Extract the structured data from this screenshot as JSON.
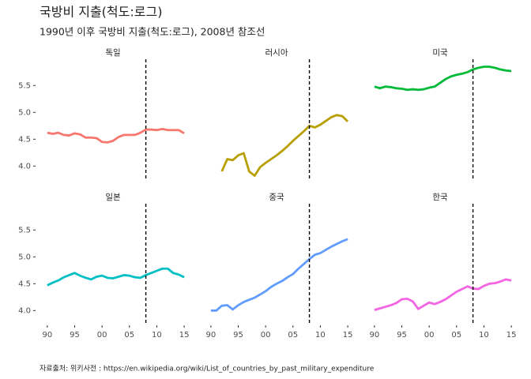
{
  "chart_data": {
    "type": "line",
    "facet": true,
    "title": "국방비 지출(척도:로그)",
    "subtitle": "1990년 이후 국방비 지출(척도:로그), 2008년 참조선",
    "caption": "자료출처: 위키사전 : https://en.wikipedia.org/wiki/List_of_countries_by_past_military_expenditure",
    "x": [
      1990,
      1991,
      1992,
      1993,
      1994,
      1995,
      1996,
      1997,
      1998,
      1999,
      2000,
      2001,
      2002,
      2003,
      2004,
      2005,
      2006,
      2007,
      2008,
      2009,
      2010,
      2011,
      2012,
      2013,
      2014,
      2015
    ],
    "xlim": [
      1988,
      2016
    ],
    "xticks": [
      {
        "value": 1990,
        "label": "90"
      },
      {
        "value": 1995,
        "label": "95"
      },
      {
        "value": 2000,
        "label": "00"
      },
      {
        "value": 2005,
        "label": "05"
      },
      {
        "value": 2010,
        "label": "10"
      },
      {
        "value": 2015,
        "label": "15"
      }
    ],
    "ylim": [
      3.74,
      5.99
    ],
    "yticks": [
      {
        "value": 4,
        "label": "4.0"
      },
      4.5,
      {
        "value": 5,
        "label": "5.0"
      },
      5.5
    ],
    "vline": 2008,
    "series": [
      {
        "name": "독일",
        "color": "#F8766D",
        "values": [
          4.62,
          4.6,
          4.62,
          4.58,
          4.57,
          4.61,
          4.59,
          4.53,
          4.53,
          4.52,
          4.45,
          4.44,
          4.47,
          4.54,
          4.58,
          4.58,
          4.58,
          4.62,
          4.68,
          4.68,
          4.67,
          4.69,
          4.67,
          4.67,
          4.67,
          4.61
        ]
      },
      {
        "name": "러시아",
        "color": "#B79F00",
        "values": [
          null,
          null,
          3.9,
          4.13,
          4.11,
          4.2,
          4.24,
          3.9,
          3.82,
          3.98,
          4.06,
          4.13,
          4.2,
          4.28,
          4.37,
          4.47,
          4.56,
          4.65,
          4.75,
          4.72,
          4.77,
          4.84,
          4.91,
          4.95,
          4.93,
          4.83
        ]
      },
      {
        "name": "미국",
        "color": "#00BA38",
        "values": [
          5.48,
          5.45,
          5.48,
          5.47,
          5.45,
          5.44,
          5.42,
          5.43,
          5.42,
          5.43,
          5.46,
          5.48,
          5.55,
          5.62,
          5.67,
          5.7,
          5.72,
          5.75,
          5.8,
          5.83,
          5.85,
          5.85,
          5.83,
          5.8,
          5.78,
          5.77
        ]
      },
      {
        "name": "일본",
        "color": "#00BFC4",
        "values": [
          4.47,
          4.52,
          4.56,
          4.62,
          4.66,
          4.7,
          4.65,
          4.61,
          4.58,
          4.63,
          4.65,
          4.61,
          4.6,
          4.63,
          4.66,
          4.65,
          4.62,
          4.61,
          4.66,
          4.7,
          4.74,
          4.78,
          4.78,
          4.7,
          4.67,
          4.62
        ]
      },
      {
        "name": "중국",
        "color": "#619CFF",
        "values": [
          4.0,
          4.0,
          4.09,
          4.1,
          4.02,
          4.1,
          4.16,
          4.2,
          4.24,
          4.3,
          4.36,
          4.44,
          4.5,
          4.55,
          4.62,
          4.68,
          4.78,
          4.87,
          4.96,
          5.04,
          5.07,
          5.13,
          5.19,
          5.24,
          5.29,
          5.33
        ]
      },
      {
        "name": "한국",
        "color": "#F564E3",
        "values": [
          4.01,
          4.04,
          4.07,
          4.1,
          4.14,
          4.21,
          4.22,
          4.17,
          4.03,
          4.09,
          4.15,
          4.12,
          4.16,
          4.21,
          4.28,
          4.35,
          4.4,
          4.45,
          4.41,
          4.4,
          4.46,
          4.5,
          4.51,
          4.54,
          4.58,
          4.56
        ]
      }
    ]
  }
}
